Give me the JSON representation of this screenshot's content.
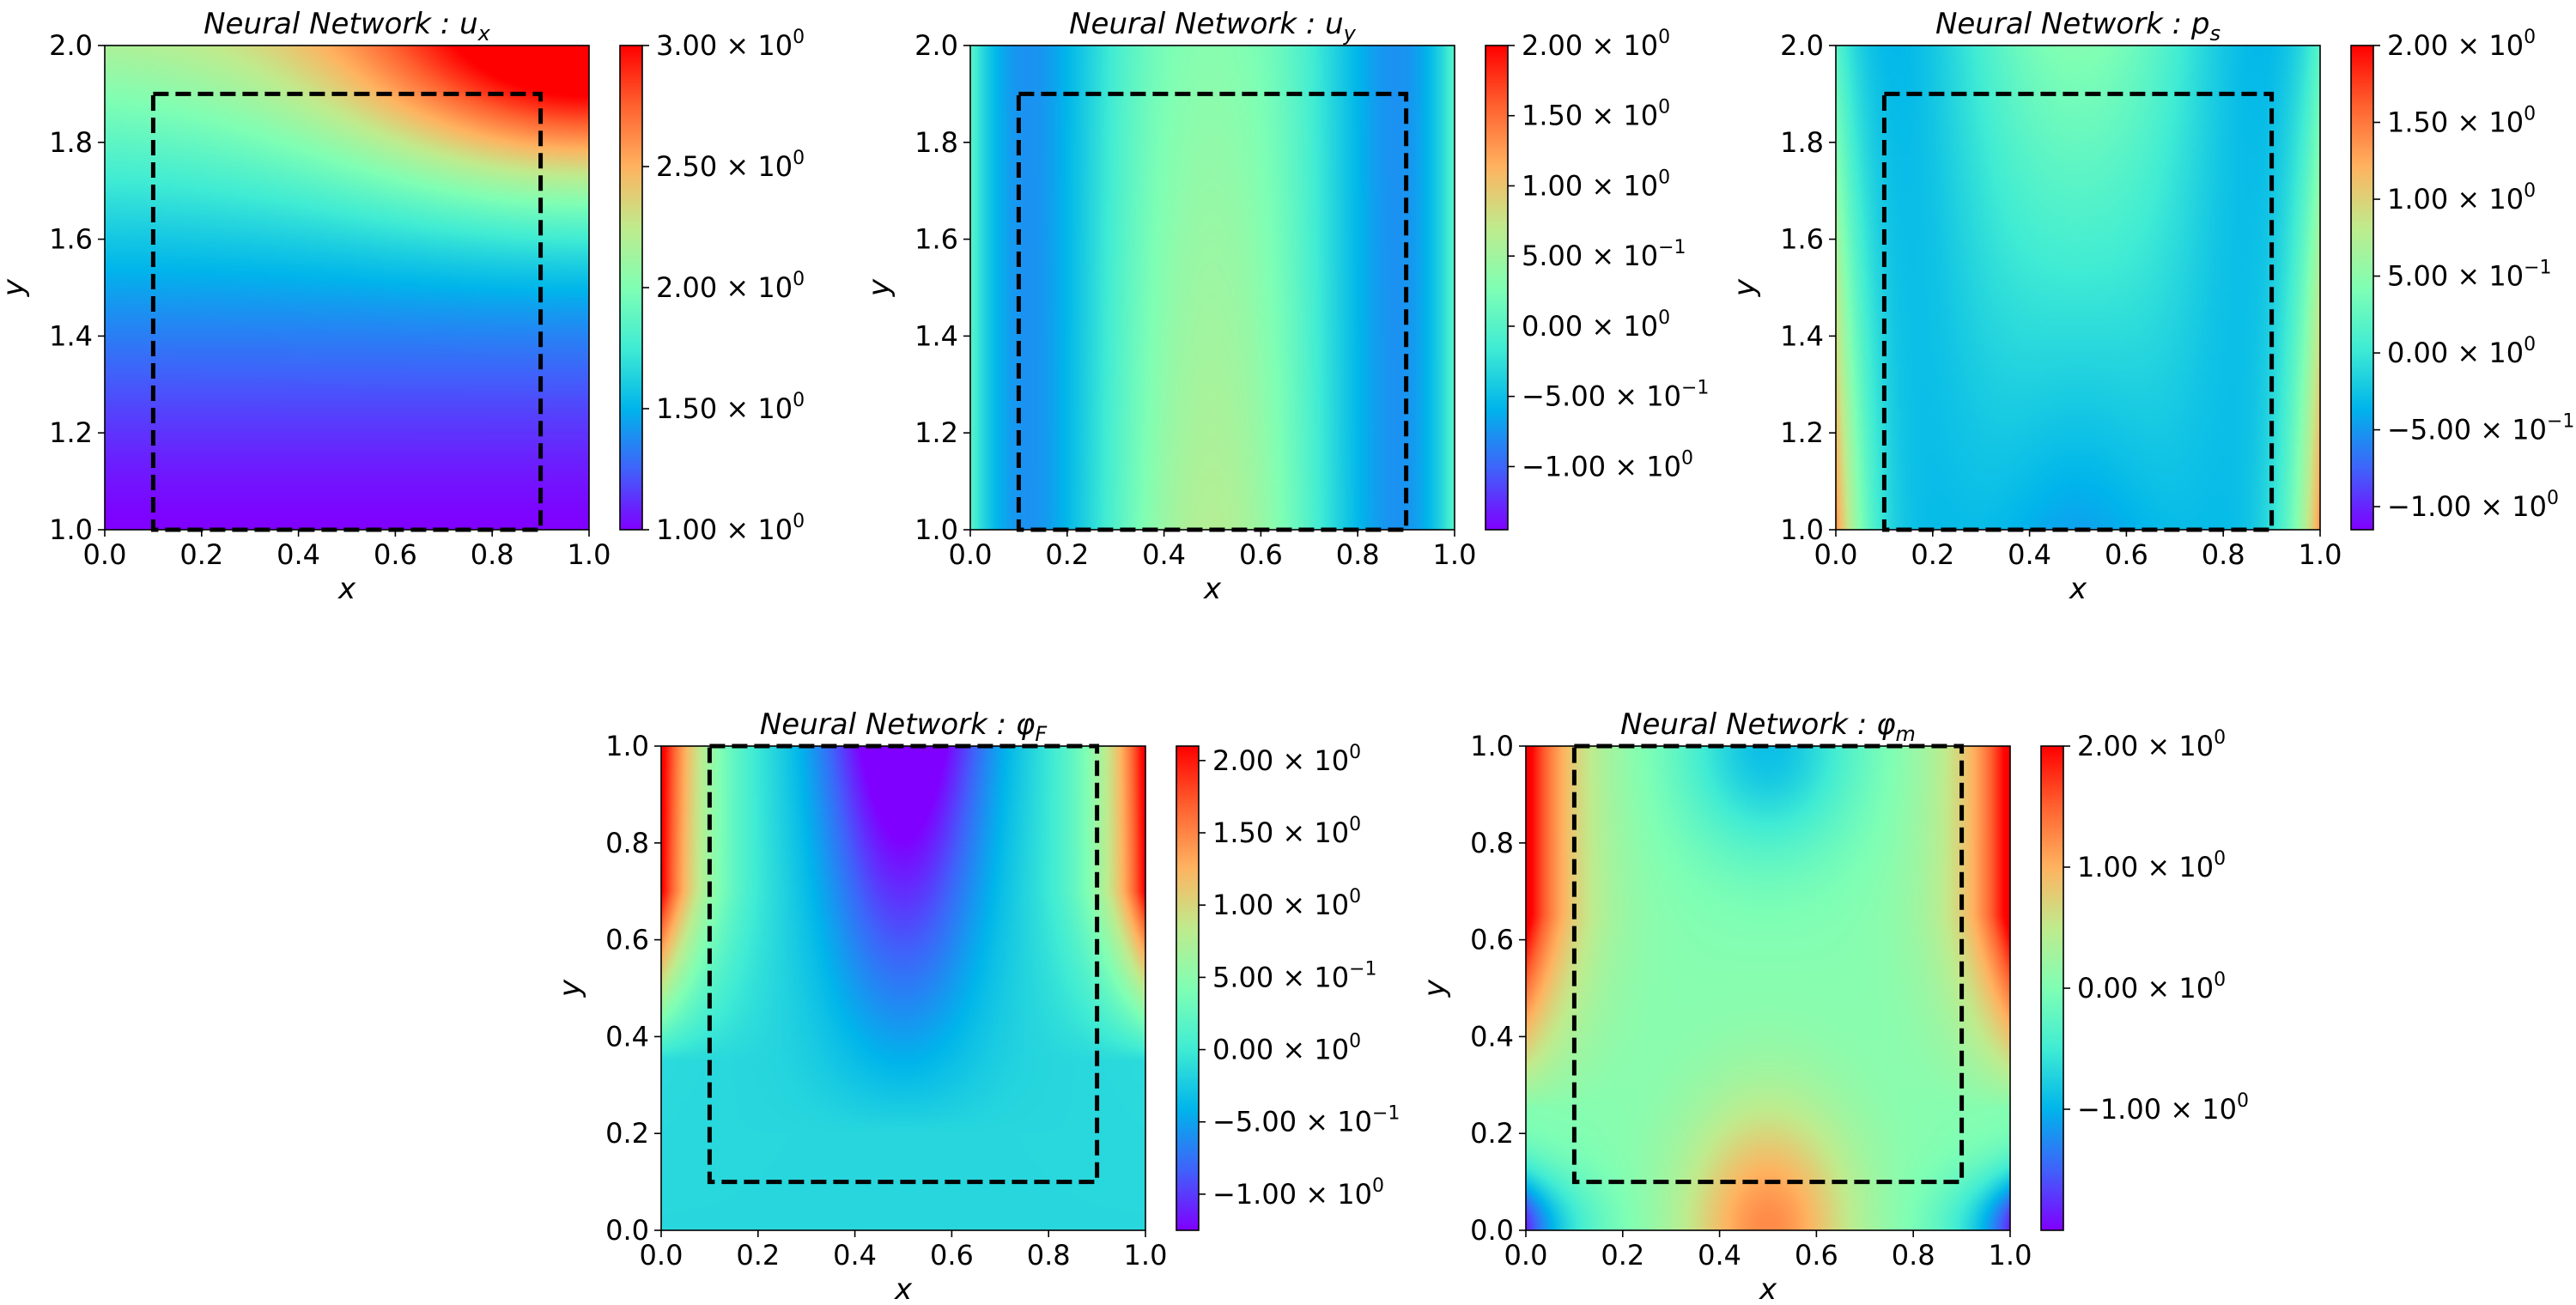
{
  "figure": {
    "colors": {
      "colormap": [
        "#8000ff",
        "#4062fa",
        "#00b5eb",
        "#40ecd4",
        "#80ffb4",
        "#c0eb8d",
        "#ffb360",
        "#ff6230",
        "#ff0000"
      ],
      "dash_box": "#000000",
      "background": "#ffffff"
    }
  },
  "chart_data": [
    {
      "id": "ux",
      "type": "heatmap",
      "title": "Neural Network : u",
      "title_sub": "x",
      "xlabel": "x",
      "ylabel": "y",
      "xlim": [
        0.0,
        1.0
      ],
      "ylim": [
        1.0,
        2.0
      ],
      "xticks": [
        "0.0",
        "0.2",
        "0.4",
        "0.6",
        "0.8",
        "1.0"
      ],
      "yticks": [
        "1.0",
        "1.2",
        "1.4",
        "1.6",
        "1.8",
        "2.0"
      ],
      "dashed_box": {
        "x": [
          0.1,
          0.9
        ],
        "y": [
          1.0,
          1.9
        ]
      },
      "vmin": 1.0,
      "vmax": 3.0,
      "colorbar_ticks": [
        {
          "value": 3.0,
          "mant": "3.00 × 10",
          "exp": "0"
        },
        {
          "value": 2.5,
          "mant": "2.50 × 10",
          "exp": "0"
        },
        {
          "value": 2.0,
          "mant": "2.00 × 10",
          "exp": "0"
        },
        {
          "value": 1.5,
          "mant": "1.50 × 10",
          "exp": "0"
        },
        {
          "value": 1.0,
          "mant": "1.00 × 10",
          "exp": "0"
        }
      ]
    },
    {
      "id": "uy",
      "type": "heatmap",
      "title": "Neural Network : u",
      "title_sub": "y",
      "xlabel": "x",
      "ylabel": "y",
      "xlim": [
        0.0,
        1.0
      ],
      "ylim": [
        1.0,
        2.0
      ],
      "xticks": [
        "0.0",
        "0.2",
        "0.4",
        "0.6",
        "0.8",
        "1.0"
      ],
      "yticks": [
        "1.0",
        "1.2",
        "1.4",
        "1.6",
        "1.8",
        "2.0"
      ],
      "dashed_box": {
        "x": [
          0.1,
          0.9
        ],
        "y": [
          1.0,
          1.9
        ]
      },
      "vmin": -1.45,
      "vmax": 2.0,
      "colorbar_ticks": [
        {
          "value": 2.0,
          "mant": "2.00 × 10",
          "exp": "0"
        },
        {
          "value": 1.5,
          "mant": "1.50 × 10",
          "exp": "0"
        },
        {
          "value": 1.0,
          "mant": "1.00 × 10",
          "exp": "0"
        },
        {
          "value": 0.5,
          "mant": "5.00 × 10",
          "exp": "−1"
        },
        {
          "value": 0.0,
          "mant": "0.00 × 10",
          "exp": "0"
        },
        {
          "value": -0.5,
          "mant": "−5.00 × 10",
          "exp": "−1"
        },
        {
          "value": -1.0,
          "mant": "−1.00 × 10",
          "exp": "0"
        }
      ]
    },
    {
      "id": "ps",
      "type": "heatmap",
      "title": "Neural Network : p",
      "title_sub": "s",
      "xlabel": "x",
      "ylabel": "y",
      "xlim": [
        0.0,
        1.0
      ],
      "ylim": [
        1.0,
        2.0
      ],
      "xticks": [
        "0.0",
        "0.2",
        "0.4",
        "0.6",
        "0.8",
        "1.0"
      ],
      "yticks": [
        "1.0",
        "1.2",
        "1.4",
        "1.6",
        "1.8",
        "2.0"
      ],
      "dashed_box": {
        "x": [
          0.1,
          0.9
        ],
        "y": [
          1.0,
          1.9
        ]
      },
      "vmin": -1.15,
      "vmax": 2.0,
      "colorbar_ticks": [
        {
          "value": 2.0,
          "mant": "2.00 × 10",
          "exp": "0"
        },
        {
          "value": 1.5,
          "mant": "1.50 × 10",
          "exp": "0"
        },
        {
          "value": 1.0,
          "mant": "1.00 × 10",
          "exp": "0"
        },
        {
          "value": 0.5,
          "mant": "5.00 × 10",
          "exp": "−1"
        },
        {
          "value": 0.0,
          "mant": "0.00 × 10",
          "exp": "0"
        },
        {
          "value": -0.5,
          "mant": "−5.00 × 10",
          "exp": "−1"
        },
        {
          "value": -1.0,
          "mant": "−1.00 × 10",
          "exp": "0"
        }
      ]
    },
    {
      "id": "phiF",
      "type": "heatmap",
      "title": "Neural Network : φ",
      "title_sub": "F",
      "xlabel": "x",
      "ylabel": "y",
      "xlim": [
        0.0,
        1.0
      ],
      "ylim": [
        0.0,
        1.0
      ],
      "xticks": [
        "0.0",
        "0.2",
        "0.4",
        "0.6",
        "0.8",
        "1.0"
      ],
      "yticks": [
        "0.0",
        "0.2",
        "0.4",
        "0.6",
        "0.8",
        "1.0"
      ],
      "dashed_box": {
        "x": [
          0.1,
          0.9
        ],
        "y": [
          0.1,
          1.0
        ]
      },
      "vmin": -1.25,
      "vmax": 2.1,
      "colorbar_ticks": [
        {
          "value": 2.0,
          "mant": "2.00 × 10",
          "exp": "0"
        },
        {
          "value": 1.5,
          "mant": "1.50 × 10",
          "exp": "0"
        },
        {
          "value": 1.0,
          "mant": "1.00 × 10",
          "exp": "0"
        },
        {
          "value": 0.5,
          "mant": "5.00 × 10",
          "exp": "−1"
        },
        {
          "value": 0.0,
          "mant": "0.00 × 10",
          "exp": "0"
        },
        {
          "value": -0.5,
          "mant": "−5.00 × 10",
          "exp": "−1"
        },
        {
          "value": -1.0,
          "mant": "−1.00 × 10",
          "exp": "0"
        }
      ]
    },
    {
      "id": "phim",
      "type": "heatmap",
      "title": "Neural Network : φ",
      "title_sub": "m",
      "xlabel": "x",
      "ylabel": "y",
      "xlim": [
        0.0,
        1.0
      ],
      "ylim": [
        0.0,
        1.0
      ],
      "xticks": [
        "0.0",
        "0.2",
        "0.4",
        "0.6",
        "0.8",
        "1.0"
      ],
      "yticks": [
        "0.0",
        "0.2",
        "0.4",
        "0.6",
        "0.8",
        "1.0"
      ],
      "dashed_box": {
        "x": [
          0.1,
          0.9
        ],
        "y": [
          0.1,
          1.0
        ]
      },
      "vmin": -2.0,
      "vmax": 2.0,
      "colorbar_ticks": [
        {
          "value": 2.0,
          "mant": "2.00 × 10",
          "exp": "0"
        },
        {
          "value": 1.0,
          "mant": "1.00 × 10",
          "exp": "0"
        },
        {
          "value": 0.0,
          "mant": "0.00 × 10",
          "exp": "0"
        },
        {
          "value": -1.0,
          "mant": "−1.00 × 10",
          "exp": "0"
        }
      ]
    }
  ]
}
